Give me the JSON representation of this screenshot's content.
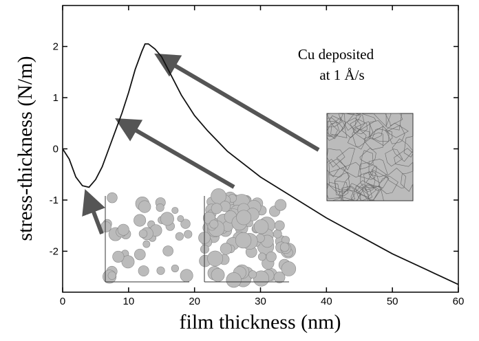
{
  "chart_data": {
    "type": "line",
    "x_label": "film thickness (nm)",
    "y_label": "stress-thickness (N/m)",
    "annotations": [
      "Cu deposited",
      "at 1 Å/s"
    ],
    "x": [
      0,
      1,
      2,
      3,
      4,
      5,
      6,
      7,
      8,
      9,
      10,
      11,
      12,
      12.5,
      13,
      14,
      15,
      16,
      18,
      20,
      22,
      25,
      30,
      35,
      40,
      45,
      50,
      55,
      60
    ],
    "series": [
      {
        "color": "#111111",
        "values": [
          0,
          -0.2,
          -0.55,
          -0.72,
          -0.75,
          -0.6,
          -0.35,
          0,
          0.35,
          0.7,
          1.1,
          1.55,
          1.9,
          2.05,
          2.05,
          1.95,
          1.8,
          1.55,
          1.05,
          0.65,
          0.35,
          -0.05,
          -0.55,
          -0.95,
          -1.35,
          -1.7,
          -2.05,
          -2.35,
          -2.65
        ]
      }
    ],
    "xlim": [
      0,
      60
    ],
    "xticks": [
      0,
      10,
      20,
      30,
      40,
      50,
      60
    ],
    "ylim": [
      -2.8,
      2.8
    ],
    "yticks": [
      -2,
      -1,
      0,
      1,
      2
    ]
  }
}
